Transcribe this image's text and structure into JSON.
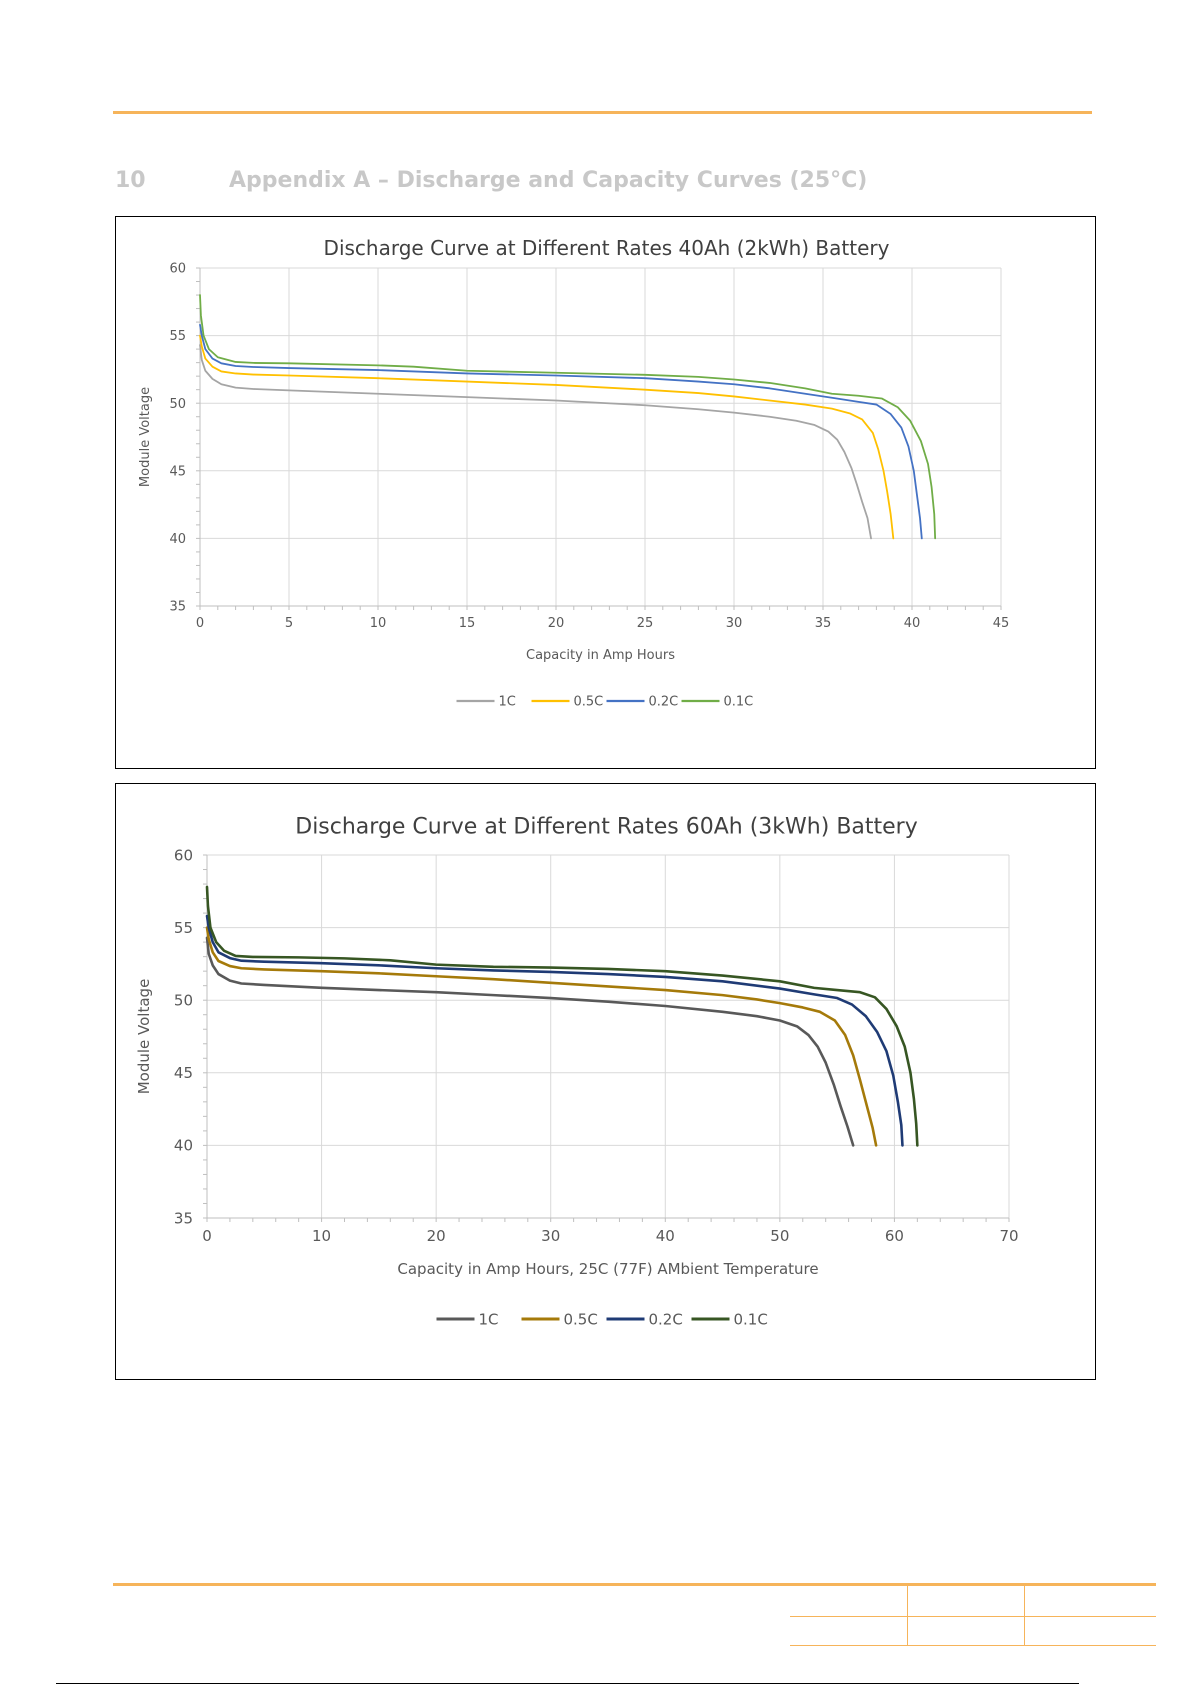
{
  "section": {
    "number": "10",
    "title": "Appendix A – Discharge and Capacity Curves (25°C)"
  },
  "chart_data": [
    {
      "type": "line",
      "title": "Discharge Curve at Different Rates 40Ah (2kWh) Battery",
      "xlabel": "Capacity in Amp Hours",
      "ylabel": "Module Voltage",
      "xlim": [
        0,
        45
      ],
      "ylim": [
        35,
        60
      ],
      "xticks": [
        0,
        5,
        10,
        15,
        20,
        25,
        30,
        35,
        40,
        45
      ],
      "yticks": [
        35,
        40,
        45,
        50,
        55,
        60
      ],
      "grid": true,
      "legend_position": "bottom",
      "series": [
        {
          "name": "1C",
          "color": "#a5a5a5",
          "points": [
            [
              0,
              54.3
            ],
            [
              0.1,
              53.2
            ],
            [
              0.3,
              52.4
            ],
            [
              0.7,
              51.8
            ],
            [
              1.2,
              51.4
            ],
            [
              2,
              51.15
            ],
            [
              3,
              51.05
            ],
            [
              5,
              50.95
            ],
            [
              10,
              50.7
            ],
            [
              15,
              50.45
            ],
            [
              20,
              50.2
            ],
            [
              25,
              49.85
            ],
            [
              28,
              49.55
            ],
            [
              30,
              49.3
            ],
            [
              32,
              49.0
            ],
            [
              33.5,
              48.7
            ],
            [
              34.5,
              48.4
            ],
            [
              35.3,
              47.9
            ],
            [
              35.8,
              47.3
            ],
            [
              36.2,
              46.4
            ],
            [
              36.6,
              45.2
            ],
            [
              36.9,
              44.0
            ],
            [
              37.2,
              42.7
            ],
            [
              37.5,
              41.5
            ],
            [
              37.7,
              40.0
            ]
          ]
        },
        {
          "name": "0.5C",
          "color": "#ffc000",
          "points": [
            [
              0,
              55.0
            ],
            [
              0.1,
              54.2
            ],
            [
              0.3,
              53.3
            ],
            [
              0.7,
              52.7
            ],
            [
              1.2,
              52.35
            ],
            [
              2,
              52.2
            ],
            [
              3,
              52.12
            ],
            [
              5,
              52.05
            ],
            [
              10,
              51.85
            ],
            [
              15,
              51.6
            ],
            [
              20,
              51.35
            ],
            [
              25,
              51.0
            ],
            [
              28,
              50.75
            ],
            [
              30,
              50.5
            ],
            [
              32,
              50.2
            ],
            [
              34,
              49.9
            ],
            [
              35.5,
              49.6
            ],
            [
              36.5,
              49.25
            ],
            [
              37.2,
              48.8
            ],
            [
              37.8,
              47.8
            ],
            [
              38.1,
              46.6
            ],
            [
              38.4,
              45.0
            ],
            [
              38.6,
              43.5
            ],
            [
              38.8,
              41.8
            ],
            [
              38.95,
              40.0
            ]
          ]
        },
        {
          "name": "0.2C",
          "color": "#4472c4",
          "points": [
            [
              0,
              55.8
            ],
            [
              0.1,
              55.0
            ],
            [
              0.3,
              54.0
            ],
            [
              0.7,
              53.3
            ],
            [
              1.2,
              52.95
            ],
            [
              2,
              52.75
            ],
            [
              3,
              52.68
            ],
            [
              5,
              52.6
            ],
            [
              10,
              52.45
            ],
            [
              15,
              52.2
            ],
            [
              20,
              52.05
            ],
            [
              25,
              51.85
            ],
            [
              28,
              51.6
            ],
            [
              30,
              51.4
            ],
            [
              32,
              51.1
            ],
            [
              34,
              50.7
            ],
            [
              35.5,
              50.4
            ],
            [
              37,
              50.1
            ],
            [
              38,
              49.9
            ],
            [
              38.8,
              49.2
            ],
            [
              39.4,
              48.2
            ],
            [
              39.8,
              46.8
            ],
            [
              40.1,
              45.0
            ],
            [
              40.3,
              43.0
            ],
            [
              40.45,
              41.5
            ],
            [
              40.55,
              40.0
            ]
          ]
        },
        {
          "name": "0.1C",
          "color": "#70ad47",
          "points": [
            [
              0,
              58.0
            ],
            [
              0.05,
              56.5
            ],
            [
              0.2,
              55.0
            ],
            [
              0.5,
              54.0
            ],
            [
              1,
              53.4
            ],
            [
              2,
              53.05
            ],
            [
              3,
              52.98
            ],
            [
              5,
              52.95
            ],
            [
              10,
              52.8
            ],
            [
              12,
              52.7
            ],
            [
              15,
              52.4
            ],
            [
              20,
              52.25
            ],
            [
              25,
              52.1
            ],
            [
              28,
              51.95
            ],
            [
              30,
              51.75
            ],
            [
              32,
              51.5
            ],
            [
              34,
              51.1
            ],
            [
              35.5,
              50.7
            ],
            [
              37,
              50.55
            ],
            [
              38.3,
              50.35
            ],
            [
              39.2,
              49.7
            ],
            [
              39.9,
              48.7
            ],
            [
              40.5,
              47.2
            ],
            [
              40.9,
              45.5
            ],
            [
              41.1,
              43.8
            ],
            [
              41.25,
              41.8
            ],
            [
              41.3,
              40.0
            ]
          ]
        }
      ]
    },
    {
      "type": "line",
      "title": "Discharge Curve at Different Rates 60Ah (3kWh) Battery",
      "xlabel": "Capacity in Amp Hours, 25C  (77F) AMbient Temperature",
      "ylabel": "Module Voltage",
      "xlim": [
        0,
        70
      ],
      "ylim": [
        35,
        60
      ],
      "xticks": [
        0,
        10,
        20,
        30,
        40,
        50,
        60,
        70
      ],
      "yticks": [
        35,
        40,
        45,
        50,
        55,
        60
      ],
      "grid": true,
      "legend_position": "bottom",
      "series": [
        {
          "name": "1C",
          "color": "#595959",
          "points": [
            [
              0,
              54.3
            ],
            [
              0.15,
              53.2
            ],
            [
              0.5,
              52.4
            ],
            [
              1,
              51.8
            ],
            [
              2,
              51.35
            ],
            [
              3,
              51.15
            ],
            [
              5,
              51.05
            ],
            [
              10,
              50.85
            ],
            [
              15,
              50.7
            ],
            [
              20,
              50.55
            ],
            [
              25,
              50.35
            ],
            [
              30,
              50.15
            ],
            [
              35,
              49.9
            ],
            [
              40,
              49.6
            ],
            [
              45,
              49.2
            ],
            [
              48,
              48.9
            ],
            [
              50,
              48.6
            ],
            [
              51.5,
              48.2
            ],
            [
              52.5,
              47.6
            ],
            [
              53.3,
              46.8
            ],
            [
              54,
              45.7
            ],
            [
              54.7,
              44.2
            ],
            [
              55.3,
              42.7
            ],
            [
              55.9,
              41.3
            ],
            [
              56.4,
              40.0
            ]
          ]
        },
        {
          "name": "0.5C",
          "color": "#a57a0a",
          "points": [
            [
              0,
              55.0
            ],
            [
              0.15,
              54.2
            ],
            [
              0.5,
              53.3
            ],
            [
              1,
              52.7
            ],
            [
              2,
              52.35
            ],
            [
              3,
              52.2
            ],
            [
              5,
              52.12
            ],
            [
              10,
              52.0
            ],
            [
              15,
              51.85
            ],
            [
              20,
              51.65
            ],
            [
              25,
              51.45
            ],
            [
              30,
              51.2
            ],
            [
              35,
              50.95
            ],
            [
              40,
              50.7
            ],
            [
              45,
              50.35
            ],
            [
              48,
              50.05
            ],
            [
              50,
              49.8
            ],
            [
              52,
              49.5
            ],
            [
              53.5,
              49.2
            ],
            [
              54.8,
              48.6
            ],
            [
              55.7,
              47.6
            ],
            [
              56.4,
              46.2
            ],
            [
              57,
              44.5
            ],
            [
              57.6,
              42.7
            ],
            [
              58.1,
              41.2
            ],
            [
              58.4,
              40.0
            ]
          ]
        },
        {
          "name": "0.2C",
          "color": "#1f3b75",
          "points": [
            [
              0,
              55.8
            ],
            [
              0.15,
              55.0
            ],
            [
              0.5,
              54.0
            ],
            [
              1,
              53.3
            ],
            [
              2,
              52.9
            ],
            [
              3,
              52.72
            ],
            [
              5,
              52.65
            ],
            [
              10,
              52.55
            ],
            [
              15,
              52.4
            ],
            [
              20,
              52.2
            ],
            [
              25,
              52.05
            ],
            [
              30,
              51.95
            ],
            [
              35,
              51.8
            ],
            [
              40,
              51.6
            ],
            [
              45,
              51.3
            ],
            [
              50,
              50.8
            ],
            [
              53,
              50.4
            ],
            [
              55,
              50.15
            ],
            [
              56.3,
              49.7
            ],
            [
              57.5,
              48.9
            ],
            [
              58.5,
              47.8
            ],
            [
              59.3,
              46.5
            ],
            [
              59.9,
              44.8
            ],
            [
              60.3,
              43.0
            ],
            [
              60.6,
              41.4
            ],
            [
              60.7,
              40.0
            ]
          ]
        },
        {
          "name": "0.1C",
          "color": "#375623",
          "points": [
            [
              0,
              57.8
            ],
            [
              0.08,
              56.5
            ],
            [
              0.3,
              55.0
            ],
            [
              0.8,
              54.0
            ],
            [
              1.5,
              53.4
            ],
            [
              2.5,
              53.05
            ],
            [
              4,
              52.98
            ],
            [
              8,
              52.95
            ],
            [
              12,
              52.88
            ],
            [
              16,
              52.75
            ],
            [
              20,
              52.45
            ],
            [
              25,
              52.3
            ],
            [
              30,
              52.25
            ],
            [
              35,
              52.15
            ],
            [
              40,
              52.0
            ],
            [
              45,
              51.7
            ],
            [
              50,
              51.3
            ],
            [
              53,
              50.85
            ],
            [
              55,
              50.7
            ],
            [
              57,
              50.55
            ],
            [
              58.3,
              50.2
            ],
            [
              59.3,
              49.4
            ],
            [
              60.2,
              48.2
            ],
            [
              60.9,
              46.8
            ],
            [
              61.4,
              45.0
            ],
            [
              61.7,
              43.2
            ],
            [
              61.9,
              41.5
            ],
            [
              62.0,
              40.0
            ]
          ]
        }
      ]
    }
  ]
}
